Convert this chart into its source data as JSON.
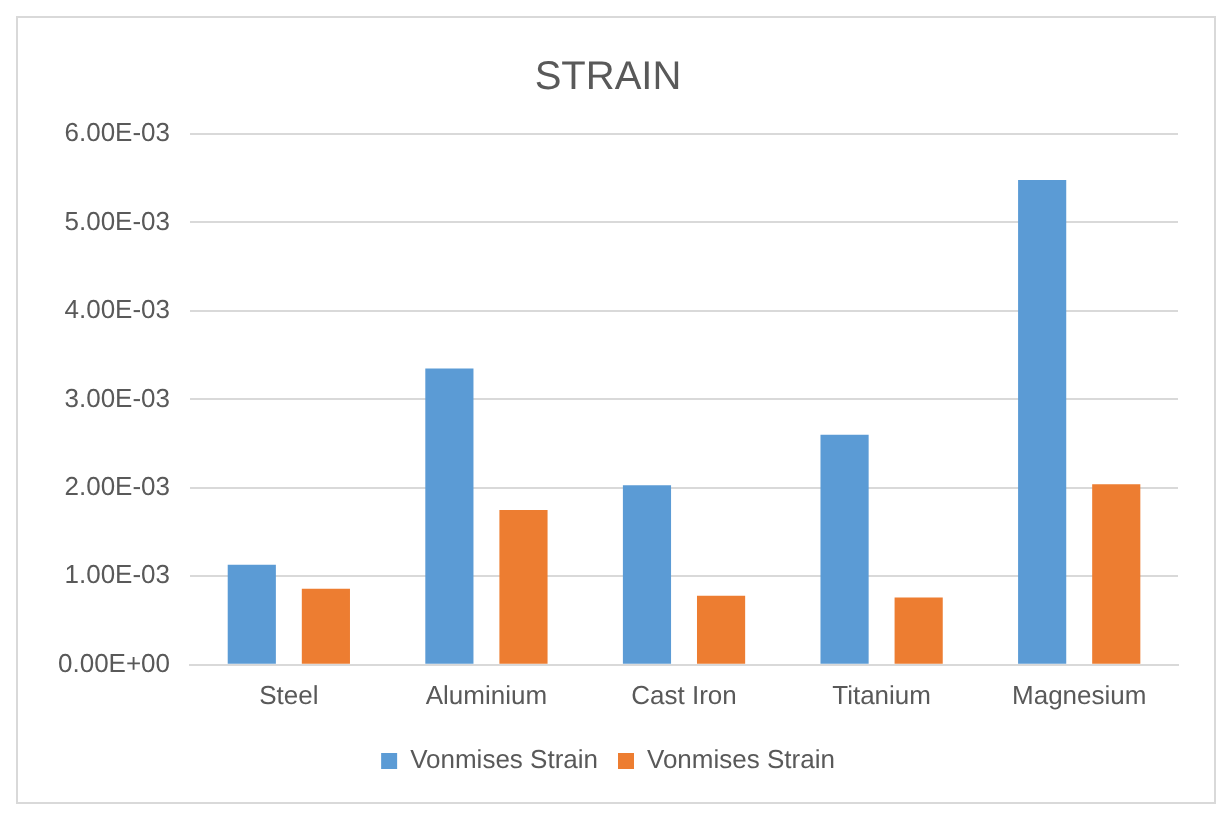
{
  "chart_data": {
    "type": "bar",
    "title": "STRAIN",
    "categories": [
      "Steel",
      "Aluminium",
      "Cast Iron",
      "Titanium",
      "Magnesium"
    ],
    "series": [
      {
        "name": "Vonmises Strain",
        "color": "#5b9bd5",
        "values": [
          0.00113,
          0.00335,
          0.00203,
          0.0026,
          0.00548
        ]
      },
      {
        "name": "Vonmises Strain",
        "color": "#ed7d31",
        "values": [
          0.00086,
          0.00175,
          0.00078,
          0.00076,
          0.00204
        ]
      }
    ],
    "ylim": [
      0,
      0.006
    ],
    "yticks": [
      {
        "value": 0,
        "label": "0.00E+00"
      },
      {
        "value": 0.001,
        "label": "1.00E-03"
      },
      {
        "value": 0.002,
        "label": "2.00E-03"
      },
      {
        "value": 0.003,
        "label": "3.00E-03"
      },
      {
        "value": 0.004,
        "label": "4.00E-03"
      },
      {
        "value": 0.005,
        "label": "5.00E-03"
      },
      {
        "value": 0.006,
        "label": "6.00E-03"
      }
    ],
    "grid": "y",
    "legend": "bottom"
  }
}
